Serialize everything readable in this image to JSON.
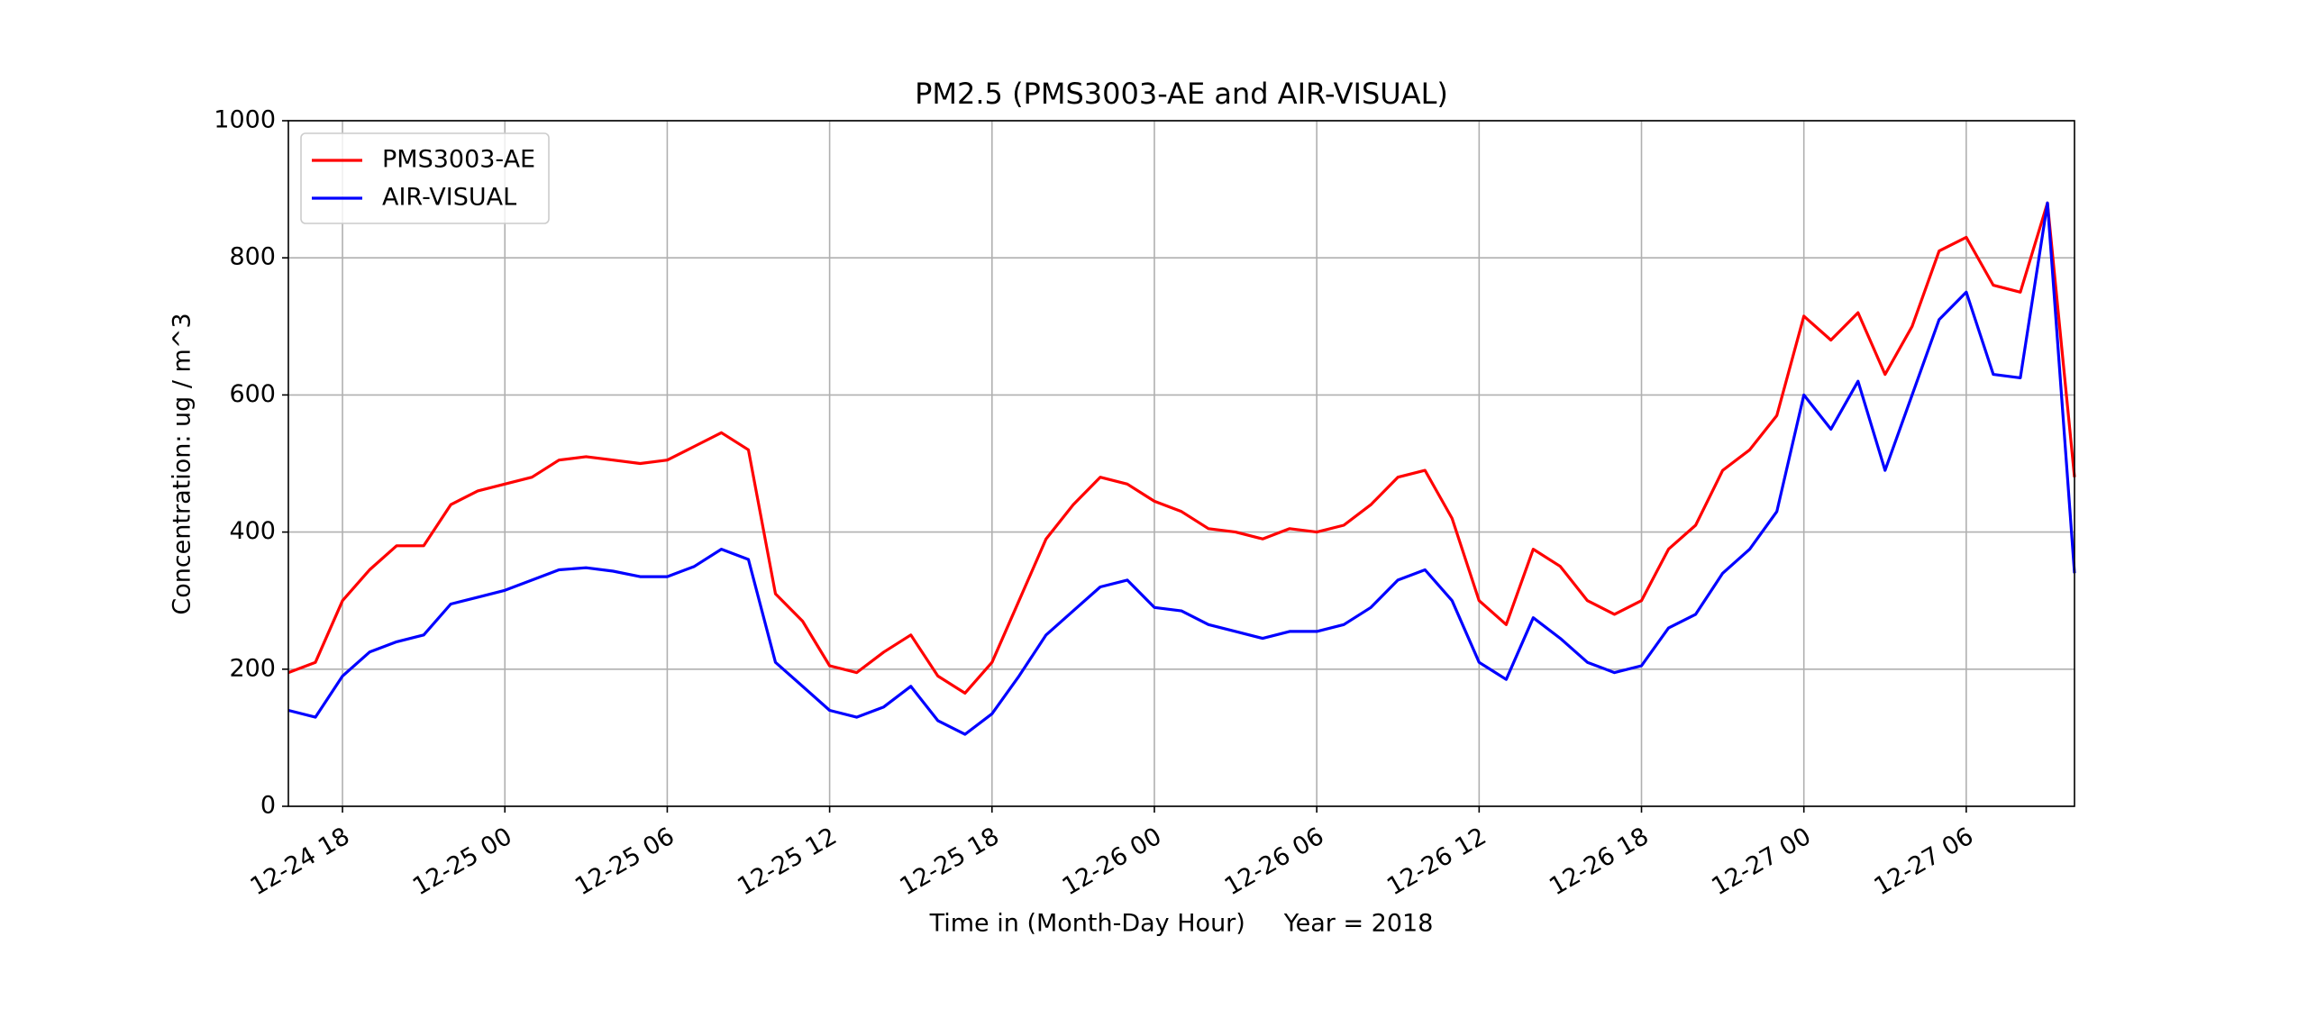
{
  "chart_data": {
    "type": "line",
    "title": "PM2.5 (PMS3003-AE and AIR-VISUAL)",
    "x_label": "Time in (Month-Day Hour)     Year = 2018",
    "y_label": "Concentration: ug / m^3",
    "x": [
      "12-24 16",
      "12-24 17",
      "12-24 18",
      "12-24 19",
      "12-24 20",
      "12-24 21",
      "12-24 22",
      "12-24 23",
      "12-25 00",
      "12-25 01",
      "12-25 02",
      "12-25 03",
      "12-25 04",
      "12-25 05",
      "12-25 06",
      "12-25 07",
      "12-25 08",
      "12-25 09",
      "12-25 10",
      "12-25 11",
      "12-25 12",
      "12-25 13",
      "12-25 14",
      "12-25 15",
      "12-25 16",
      "12-25 17",
      "12-25 18",
      "12-25 19",
      "12-25 20",
      "12-25 21",
      "12-25 22",
      "12-25 23",
      "12-26 00",
      "12-26 01",
      "12-26 02",
      "12-26 03",
      "12-26 04",
      "12-26 05",
      "12-26 06",
      "12-26 07",
      "12-26 08",
      "12-26 09",
      "12-26 10",
      "12-26 11",
      "12-26 12",
      "12-26 13",
      "12-26 14",
      "12-26 15",
      "12-26 16",
      "12-26 17",
      "12-26 18",
      "12-26 19",
      "12-26 20",
      "12-26 21",
      "12-26 22",
      "12-26 23",
      "12-27 00",
      "12-27 01",
      "12-27 02",
      "12-27 03",
      "12-27 04",
      "12-27 05",
      "12-27 06",
      "12-27 07",
      "12-27 08",
      "12-27 09",
      "12-27 10"
    ],
    "series": [
      {
        "name": "PMS3003-AE",
        "color": "#ff0000",
        "values": [
          195,
          210,
          300,
          345,
          380,
          380,
          440,
          460,
          470,
          480,
          505,
          510,
          505,
          500,
          505,
          525,
          545,
          520,
          310,
          270,
          205,
          195,
          225,
          250,
          190,
          165,
          210,
          300,
          390,
          440,
          480,
          470,
          445,
          430,
          405,
          400,
          390,
          405,
          400,
          410,
          440,
          480,
          490,
          420,
          300,
          265,
          375,
          350,
          300,
          280,
          300,
          375,
          410,
          490,
          520,
          570,
          715,
          680,
          720,
          630,
          700,
          810,
          830,
          760,
          750,
          880,
          480
        ]
      },
      {
        "name": "AIR-VISUAL",
        "color": "#0000ff",
        "values": [
          140,
          130,
          190,
          225,
          240,
          250,
          295,
          305,
          315,
          330,
          345,
          348,
          343,
          335,
          335,
          350,
          375,
          360,
          210,
          175,
          140,
          130,
          145,
          175,
          125,
          105,
          135,
          190,
          250,
          285,
          320,
          330,
          290,
          285,
          265,
          255,
          245,
          255,
          255,
          265,
          290,
          330,
          345,
          300,
          210,
          185,
          275,
          245,
          210,
          195,
          205,
          260,
          280,
          340,
          375,
          430,
          600,
          550,
          620,
          490,
          600,
          710,
          750,
          630,
          625,
          880,
          340
        ]
      }
    ],
    "xlim": [
      "12-24 16",
      "12-27 10"
    ],
    "xticks": [
      "12-24 18",
      "12-25 00",
      "12-25 06",
      "12-25 12",
      "12-25 18",
      "12-26 00",
      "12-26 06",
      "12-26 12",
      "12-26 18",
      "12-27 00",
      "12-27 06"
    ],
    "ylim": [
      0,
      1000
    ],
    "yticks": [
      0,
      200,
      400,
      600,
      800,
      1000
    ],
    "grid": true,
    "legend": "upper-left"
  }
}
